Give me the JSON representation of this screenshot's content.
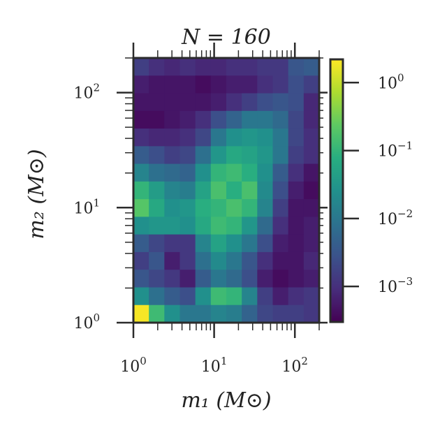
{
  "chart_data": {
    "type": "heatmap",
    "title": "N = 160",
    "xlabel": "m₁ (M⊙)",
    "ylabel": "m₂ (M⊙)",
    "x_scale": "log",
    "y_scale": "log",
    "xlim": [
      1,
      200
    ],
    "ylim": [
      1,
      200
    ],
    "x_ticks": [
      {
        "base": "10",
        "exp": "0",
        "value": 1
      },
      {
        "base": "10",
        "exp": "1",
        "value": 10
      },
      {
        "base": "10",
        "exp": "2",
        "value": 100
      }
    ],
    "y_ticks": [
      {
        "base": "10",
        "exp": "0",
        "value": 1
      },
      {
        "base": "10",
        "exp": "1",
        "value": 10
      },
      {
        "base": "10",
        "exp": "2",
        "value": 100
      }
    ],
    "colorbar": {
      "scale": "log",
      "range": [
        0.0003,
        2.2
      ],
      "colormap": "viridis",
      "ticks": [
        {
          "base": "10",
          "exp": "0",
          "value": 1
        },
        {
          "base": "10",
          "exp": "−1",
          "value": 0.1
        },
        {
          "base": "10",
          "exp": "−2",
          "value": 0.01
        },
        {
          "base": "10",
          "exp": "−3",
          "value": 0.001
        }
      ]
    },
    "grid_rows_top_to_bottom": [
      [
        -2.8,
        -3.0,
        -3.1,
        -3.0,
        -3.1,
        -3.1,
        -3.0,
        -3.0,
        -2.9,
        -2.9,
        -2.5,
        -2.4
      ],
      [
        -3.2,
        -3.3,
        -3.3,
        -3.3,
        -3.4,
        -3.3,
        -3.2,
        -3.2,
        -3.0,
        -2.9,
        -2.6,
        -2.8
      ],
      [
        -3.3,
        -3.3,
        -3.3,
        -3.3,
        -3.3,
        -3.2,
        -3.0,
        -2.8,
        -2.6,
        -2.5,
        -2.6,
        -3.1
      ],
      [
        -3.4,
        -3.4,
        -3.3,
        -3.2,
        -3.0,
        -2.6,
        -2.3,
        -2.0,
        -2.0,
        -2.2,
        -2.7,
        -3.1
      ],
      [
        -3.0,
        -3.1,
        -3.1,
        -3.0,
        -2.7,
        -2.0,
        -1.6,
        -1.5,
        -1.6,
        -2.0,
        -2.7,
        -3.0
      ],
      [
        -2.4,
        -2.6,
        -2.8,
        -2.7,
        -2.1,
        -1.5,
        -1.2,
        -1.3,
        -1.5,
        -2.0,
        -2.8,
        -3.0
      ],
      [
        -1.8,
        -2.1,
        -2.2,
        -2.3,
        -1.6,
        -1.0,
        -0.9,
        -1.1,
        -1.6,
        -2.4,
        -3.0,
        -3.3
      ],
      [
        -1.0,
        -1.4,
        -1.8,
        -1.9,
        -1.3,
        -0.8,
        -1.1,
        -0.8,
        -1.7,
        -2.6,
        -3.2,
        -3.4
      ],
      [
        -0.7,
        -1.2,
        -1.6,
        -1.5,
        -1.1,
        -1.0,
        -0.8,
        -1.0,
        -1.8,
        -2.8,
        -3.3,
        -3.3
      ],
      [
        -1.6,
        -1.5,
        -1.5,
        -1.6,
        -1.2,
        -0.9,
        -1.0,
        -1.5,
        -2.2,
        -3.0,
        -3.3,
        -3.2
      ],
      [
        -2.4,
        -2.7,
        -2.9,
        -2.9,
        -1.8,
        -1.3,
        -1.6,
        -2.0,
        -2.6,
        -3.2,
        -3.3,
        -3.2
      ],
      [
        -2.8,
        -2.5,
        -3.2,
        -2.9,
        -2.1,
        -1.7,
        -2.0,
        -2.5,
        -3.0,
        -3.3,
        -3.3,
        -3.1
      ],
      [
        -2.5,
        -2.7,
        -2.9,
        -3.2,
        -2.4,
        -2.0,
        -2.2,
        -2.6,
        -3.2,
        -3.4,
        -3.3,
        -3.2
      ],
      [
        -1.6,
        -2.1,
        -2.4,
        -2.6,
        -1.6,
        -0.9,
        -1.0,
        -1.8,
        -2.8,
        -3.2,
        -3.0,
        -2.9
      ],
      [
        0.3,
        -0.9,
        -1.6,
        -2.0,
        -2.0,
        -1.8,
        -1.9,
        -2.3,
        -2.7,
        -2.8,
        -2.8,
        -2.9
      ]
    ]
  }
}
